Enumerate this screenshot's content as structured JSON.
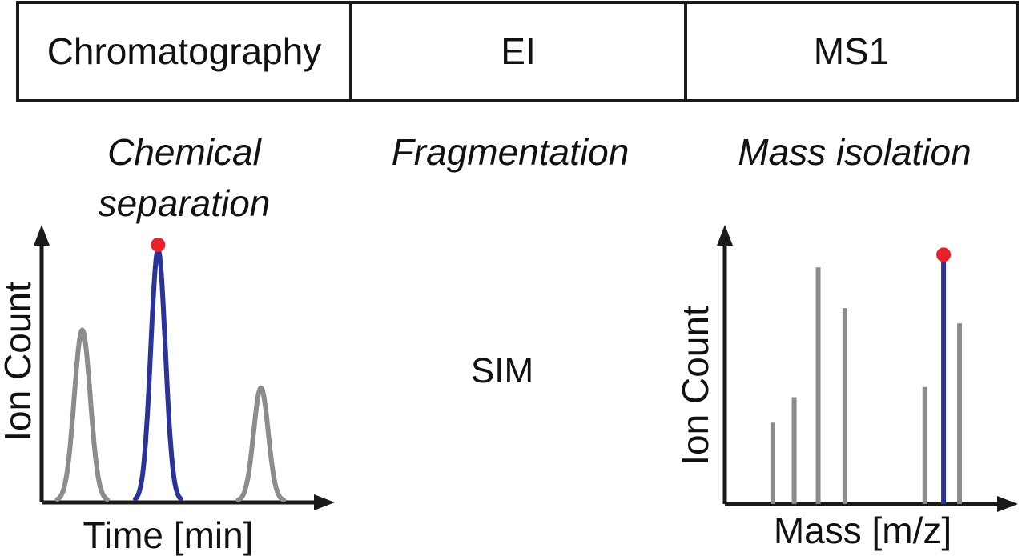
{
  "workflow": {
    "stages": [
      {
        "label": "Chromatography",
        "caption_lines": [
          "Chemical",
          "separation"
        ]
      },
      {
        "label": "EI",
        "caption_lines": [
          "Fragmentation"
        ]
      },
      {
        "label": "MS1",
        "caption_lines": [
          "Mass isolation"
        ]
      }
    ],
    "method_label": "SIM"
  },
  "colors": {
    "border": "#1a1a1a",
    "background_peak": "#8c8c8c",
    "selected_peak": "#2b3399",
    "marker": "#e8202a"
  },
  "chart_data": [
    {
      "type": "line",
      "description_role": "chromatogram",
      "xlabel": "Time [min]",
      "ylabel": "Ion Count",
      "xlim": [
        0,
        10
      ],
      "ylim": [
        0,
        10
      ],
      "grid": false,
      "series": [
        {
          "name": "peak-1",
          "center": 1.5,
          "height": 6.8,
          "width": 0.22,
          "selected": false
        },
        {
          "name": "peak-2",
          "center": 4.3,
          "height": 10.0,
          "width": 0.2,
          "selected": true
        },
        {
          "name": "peak-3",
          "center": 8.1,
          "height": 4.5,
          "width": 0.2,
          "selected": false
        }
      ],
      "marker": {
        "x": 4.3,
        "y": 10.0
      }
    },
    {
      "type": "bar",
      "description_role": "mass spectrum",
      "xlabel": "Mass [m/z]",
      "ylabel": "Ion Count",
      "xlim": [
        0,
        10
      ],
      "ylim": [
        0,
        10
      ],
      "grid": false,
      "series": [
        {
          "name": "ion-1",
          "x": 1.8,
          "value": 3.2,
          "selected": false
        },
        {
          "name": "ion-2",
          "x": 2.6,
          "value": 4.2,
          "selected": false
        },
        {
          "name": "ion-3",
          "x": 3.5,
          "value": 9.3,
          "selected": false
        },
        {
          "name": "ion-4",
          "x": 4.5,
          "value": 7.7,
          "selected": false
        },
        {
          "name": "ion-5",
          "x": 7.5,
          "value": 4.6,
          "selected": false
        },
        {
          "name": "ion-6",
          "x": 8.2,
          "value": 9.8,
          "selected": true
        },
        {
          "name": "ion-7",
          "x": 8.8,
          "value": 7.1,
          "selected": false
        }
      ],
      "marker": {
        "x": 8.2,
        "y": 9.8
      }
    }
  ]
}
